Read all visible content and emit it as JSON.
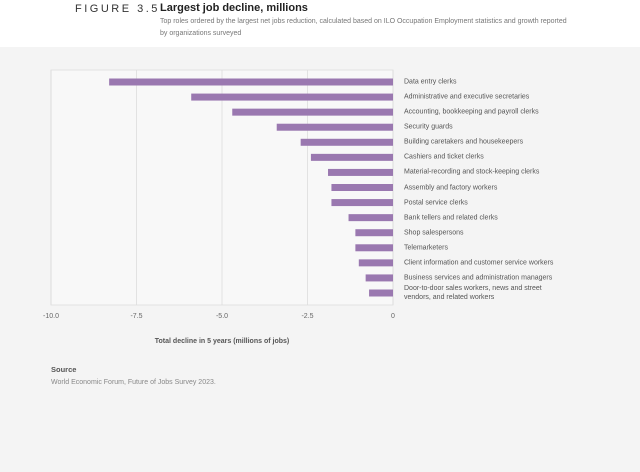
{
  "chart_data": {
    "type": "barh",
    "figure_label": "FIGURE 3.5",
    "title": "Largest job decline, millions",
    "subtitle": "Top roles ordered by the largest net jobs reduction, calculated based on ILO Occupation Employment statistics and growth reported by organizations surveyed",
    "categories": [
      "Data entry clerks",
      "Administrative and executive secretaries",
      "Accounting, bookkeeping and payroll clerks",
      "Security guards",
      "Building caretakers and housekeepers",
      "Cashiers and ticket clerks",
      "Material-recording and stock-keeping clerks",
      "Assembly and factory workers",
      "Postal service clerks",
      "Bank tellers and related clerks",
      "Shop salespersons",
      "Telemarketers",
      "Client information and customer service workers",
      "Business services and administration managers",
      "Door-to-door sales workers, news and street vendors, and related workers"
    ],
    "values": [
      -8.3,
      -5.9,
      -4.7,
      -3.4,
      -2.7,
      -2.4,
      -1.9,
      -1.8,
      -1.8,
      -1.3,
      -1.1,
      -1.1,
      -1.0,
      -0.8,
      -0.7
    ],
    "color": "#9a78b0",
    "xlim": [
      -10,
      0
    ],
    "xticks": [
      {
        "value": -10,
        "label": "-10.0"
      },
      -7.5,
      {
        "value": -5,
        "label": "-5.0"
      },
      -2.5,
      0
    ],
    "grid": true,
    "x_label": "Total decline in 5 years (millions of jobs)",
    "source_label": "Source",
    "source": "World Economic Forum, Future of Jobs Survey 2023."
  }
}
